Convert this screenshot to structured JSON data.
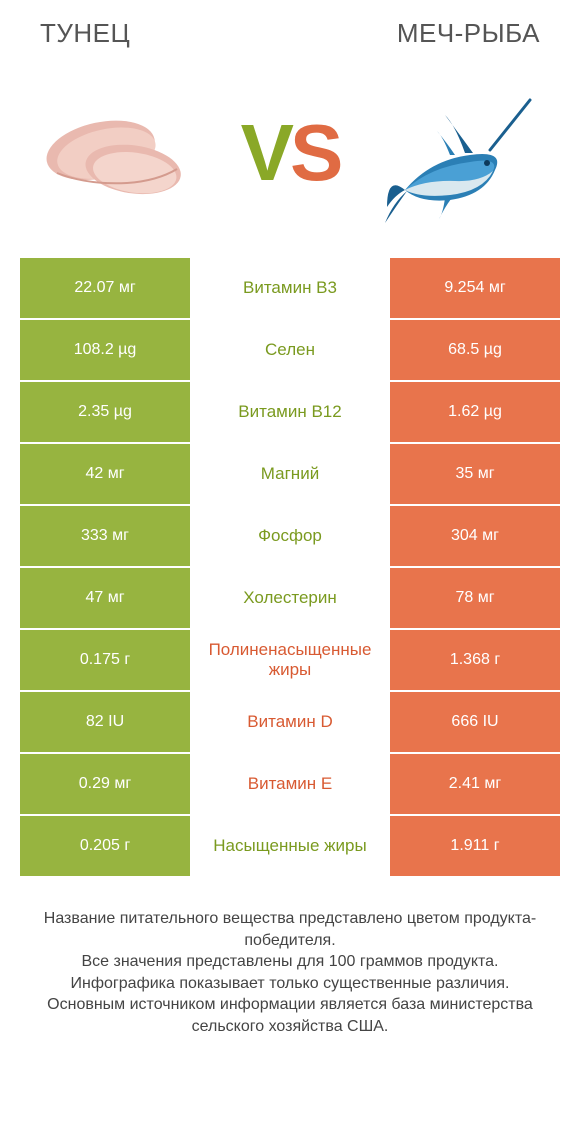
{
  "colors": {
    "green": "#97b440",
    "orange": "#e8744c",
    "green_text": "#7a9a1f",
    "orange_text": "#d85a32",
    "white": "#ffffff"
  },
  "header": {
    "left_title": "ТУНЕЦ",
    "right_title": "МЕЧ-РЫБА"
  },
  "vs": {
    "v": "V",
    "s": "S"
  },
  "rows": [
    {
      "left": "22.07 мг",
      "label": "Витамин B3",
      "right": "9.254 мг",
      "winner": "left"
    },
    {
      "left": "108.2 µg",
      "label": "Селен",
      "right": "68.5 µg",
      "winner": "left"
    },
    {
      "left": "2.35 µg",
      "label": "Витамин B12",
      "right": "1.62 µg",
      "winner": "left"
    },
    {
      "left": "42 мг",
      "label": "Магний",
      "right": "35 мг",
      "winner": "left"
    },
    {
      "left": "333 мг",
      "label": "Фосфор",
      "right": "304 мг",
      "winner": "left"
    },
    {
      "left": "47 мг",
      "label": "Холестерин",
      "right": "78 мг",
      "winner": "left"
    },
    {
      "left": "0.175 г",
      "label": "Полиненасыщенные жиры",
      "right": "1.368 г",
      "winner": "right"
    },
    {
      "left": "82 IU",
      "label": "Витамин D",
      "right": "666 IU",
      "winner": "right"
    },
    {
      "left": "0.29 мг",
      "label": "Витамин E",
      "right": "2.41 мг",
      "winner": "right"
    },
    {
      "left": "0.205 г",
      "label": "Насыщенные жиры",
      "right": "1.911 г",
      "winner": "left"
    }
  ],
  "footer": {
    "line1": "Название питательного вещества представлено цветом продукта-победителя.",
    "line2": "Все значения представлены для 100 граммов продукта.",
    "line3": "Инфографика показывает только существенные различия.",
    "line4": "Основным источником информации является база министерства сельского хозяйства США."
  }
}
